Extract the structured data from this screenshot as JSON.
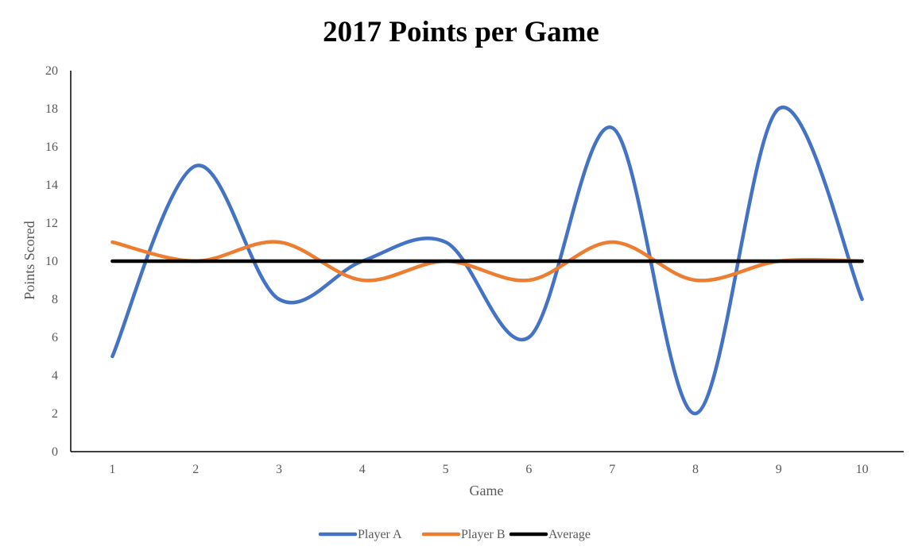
{
  "chart_data": {
    "type": "line",
    "title": "2017 Points per Game",
    "xlabel": "Game",
    "ylabel": "Points Scored",
    "categories": [
      "1",
      "2",
      "3",
      "4",
      "5",
      "6",
      "7",
      "8",
      "9",
      "10"
    ],
    "ylim": [
      0,
      20
    ],
    "yticks": [
      "0",
      "2",
      "4",
      "6",
      "8",
      "10",
      "12",
      "14",
      "16",
      "18",
      "20"
    ],
    "grid": false,
    "smooth": true,
    "legend": "bottom",
    "series": [
      {
        "name": "Player A",
        "values": [
          5,
          15,
          8,
          10,
          11,
          6,
          17,
          2,
          18,
          8
        ],
        "color": "#4472C4"
      },
      {
        "name": "Player B",
        "values": [
          11,
          10,
          11,
          9,
          10,
          9,
          11,
          9,
          10,
          10
        ],
        "color": "#ED7D31"
      },
      {
        "name": "Average",
        "values": [
          10,
          10,
          10,
          10,
          10,
          10,
          10,
          10,
          10,
          10
        ],
        "color": "#000000"
      }
    ]
  }
}
